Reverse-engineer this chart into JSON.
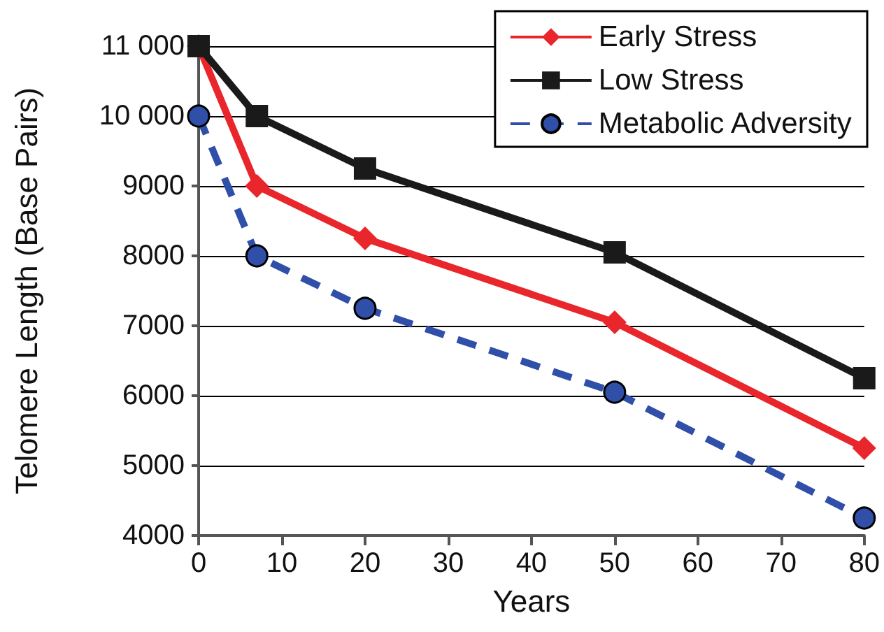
{
  "chart_data": {
    "type": "line",
    "xlabel": "Years",
    "ylabel": "Telomere Length (Base Pairs)",
    "x": [
      0,
      7,
      20,
      50,
      80
    ],
    "series": [
      {
        "name": "Early Stress",
        "color": "#e8262b",
        "marker": "diamond",
        "line_style": "solid",
        "values": [
          11000,
          9000,
          8250,
          7050,
          5250
        ]
      },
      {
        "name": "Low Stress",
        "color": "#1a1a1a",
        "marker": "square",
        "line_style": "solid",
        "values": [
          11000,
          10000,
          9250,
          8050,
          6250
        ]
      },
      {
        "name": "Metabolic Adversity",
        "color": "#2f4fa8",
        "marker": "circle",
        "line_style": "dashed",
        "values": [
          10000,
          8000,
          7250,
          6050,
          4250
        ]
      }
    ],
    "xlim": [
      0,
      80
    ],
    "xticks": [
      0,
      10,
      20,
      30,
      40,
      50,
      60,
      70,
      80
    ],
    "ylim": [
      4000,
      11000
    ],
    "yticks": [
      4000,
      5000,
      6000,
      7000,
      8000,
      9000,
      {
        "value": 10000,
        "label": "10 000"
      },
      {
        "value": 11000,
        "label": "11 000"
      }
    ],
    "grid": "y",
    "legend": "top right"
  }
}
